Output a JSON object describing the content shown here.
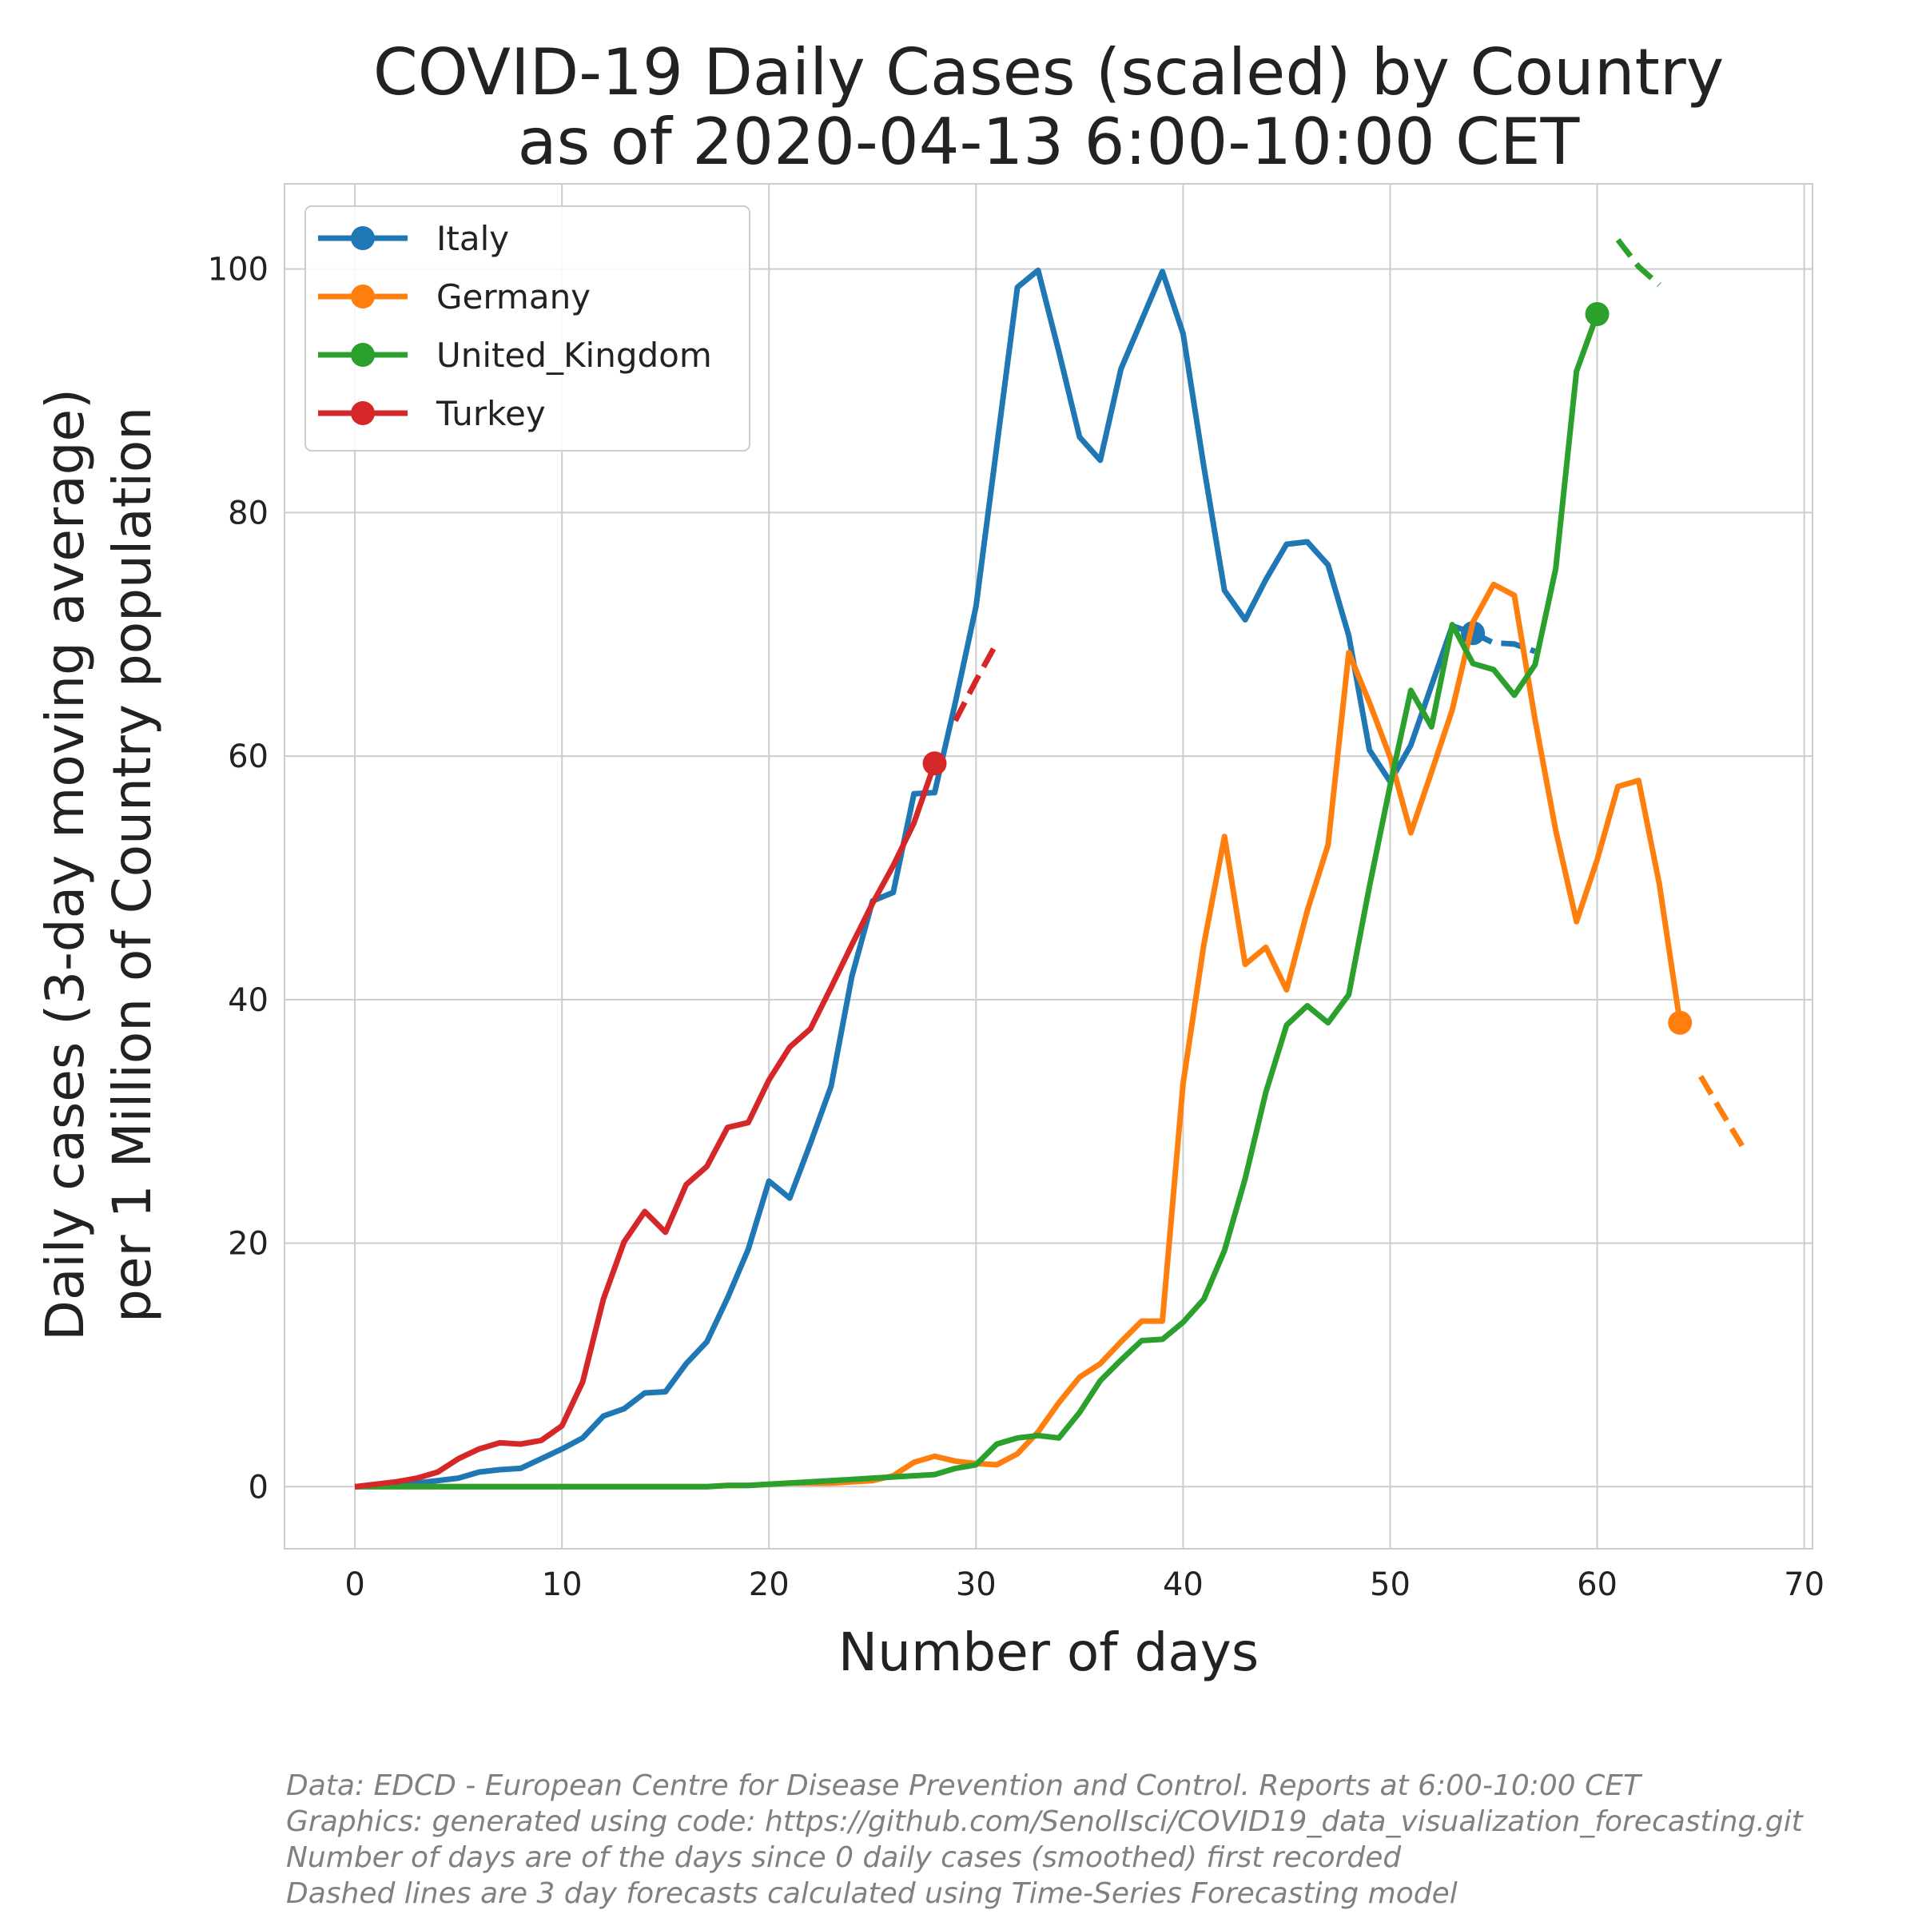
{
  "chart_data": {
    "type": "line",
    "title": [
      "COVID-19 Daily Cases (scaled) by Country",
      "as of 2020-04-13 6:00-10:00 CET"
    ],
    "xlabel": "Number of days",
    "ylabel": [
      "Daily cases (3-day moving average)",
      "per 1 Million of Country population"
    ],
    "xlim": [
      -3.4,
      70.4
    ],
    "ylim": [
      -5.1,
      107
    ],
    "xticks": [
      0,
      10,
      20,
      30,
      40,
      50,
      60,
      70
    ],
    "yticks": [
      0,
      20,
      40,
      60,
      80,
      100
    ],
    "grid": true,
    "legend_position": "top-left",
    "series": [
      {
        "name": "Italy",
        "color": "#1f77b4",
        "x_start": 0,
        "values": [
          0.0,
          0.05,
          0.1,
          0.3,
          0.5,
          0.7,
          1.2,
          1.4,
          1.5,
          2.3,
          3.1,
          4.0,
          5.8,
          6.4,
          7.7,
          7.8,
          10.1,
          11.9,
          15.5,
          19.5,
          25.1,
          23.7,
          28.2,
          32.9,
          41.9,
          48.1,
          48.8,
          56.9,
          57.0,
          64.4,
          72.3,
          85.4,
          98.5,
          99.9,
          93.2,
          86.2,
          84.3,
          91.8,
          95.8,
          99.8,
          94.7,
          83.8,
          73.6,
          71.2,
          74.5,
          77.4,
          77.6,
          75.7,
          69.9,
          60.5,
          57.9,
          60.9,
          65.8,
          70.7,
          70.1
        ],
        "forecast": [
          [
            54,
            70.1
          ],
          [
            55,
            69.3
          ],
          [
            56,
            69.2
          ],
          [
            57,
            68.6
          ]
        ]
      },
      {
        "name": "Germany",
        "color": "#ff7f0e",
        "x_start": 0,
        "values": [
          0.0,
          0.0,
          0.0,
          0.0,
          0.0,
          0.0,
          0.0,
          0.0,
          0.0,
          0.0,
          0.0,
          0.0,
          0.0,
          0.0,
          0.0,
          0.0,
          0.0,
          0.0,
          0.1,
          0.1,
          0.2,
          0.3,
          0.3,
          0.3,
          0.4,
          0.5,
          0.9,
          2.0,
          2.5,
          2.1,
          1.9,
          1.8,
          2.7,
          4.5,
          6.9,
          9.0,
          10.1,
          11.9,
          13.6,
          13.6,
          33.1,
          44.5,
          53.4,
          42.9,
          44.3,
          40.8,
          47.3,
          52.7,
          68.5,
          64.4,
          59.9,
          53.7,
          58.7,
          63.8,
          71.0,
          74.1,
          73.2,
          63.0,
          53.9,
          46.4,
          51.5,
          57.5,
          58.0,
          49.5,
          38.1
        ],
        "forecast": [
          [
            65,
            33.7
          ],
          [
            66,
            30.8
          ],
          [
            67,
            28.0
          ]
        ]
      },
      {
        "name": "United_Kingdom",
        "color": "#2ca02c",
        "x_start": 0,
        "values": [
          0.0,
          0.0,
          0.0,
          0.0,
          0.0,
          0.0,
          0.0,
          0.0,
          0.0,
          0.0,
          0.0,
          0.0,
          0.0,
          0.0,
          0.0,
          0.0,
          0.0,
          0.0,
          0.1,
          0.1,
          0.2,
          0.3,
          0.4,
          0.5,
          0.6,
          0.7,
          0.8,
          0.9,
          1.0,
          1.5,
          1.8,
          3.5,
          4.0,
          4.2,
          4.0,
          6.1,
          8.7,
          10.4,
          12.0,
          12.1,
          13.5,
          15.4,
          19.4,
          25.3,
          32.4,
          37.9,
          39.5,
          38.1,
          40.4,
          49.3,
          57.6,
          65.4,
          62.4,
          70.8,
          67.6,
          67.1,
          65.0,
          67.5,
          75.4,
          91.6,
          96.3
        ],
        "forecast": [
          [
            61,
            102.4
          ],
          [
            62,
            100.2
          ],
          [
            63,
            98.7
          ]
        ]
      },
      {
        "name": "Turkey",
        "color": "#d62728",
        "x_start": 0,
        "values": [
          0.0,
          0.2,
          0.4,
          0.7,
          1.2,
          2.3,
          3.1,
          3.6,
          3.5,
          3.8,
          5.0,
          8.6,
          15.4,
          20.1,
          22.6,
          20.9,
          24.8,
          26.3,
          29.5,
          29.9,
          33.4,
          36.1,
          37.6,
          41.0,
          44.5,
          47.9,
          51.0,
          54.5,
          59.4
        ],
        "forecast": [
          [
            29,
            62.9
          ],
          [
            30,
            66.2
          ],
          [
            31,
            69.3
          ]
        ]
      }
    ]
  },
  "legend": {
    "items": [
      "Italy",
      "Germany",
      "United_Kingdom",
      "Turkey"
    ]
  },
  "footnotes": [
    "Data: EDCD - European Centre for Disease Prevention and Control. Reports at 6:00-10:00 CET",
    "Graphics: generated using code: https://github.com/SenolIsci/COVID19_data_visualization_forecasting.git",
    "Number of days are of the days since 0 daily cases (smoothed) first recorded",
    "Dashed lines are 3 day forecasts calculated using Time-Series Forecasting model"
  ]
}
